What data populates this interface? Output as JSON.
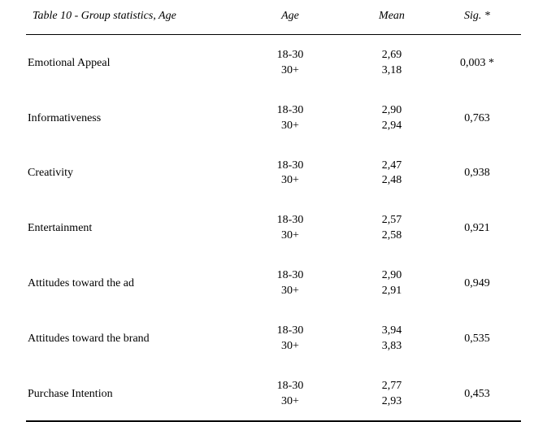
{
  "table": {
    "title": "Table 10 - Group statistics, Age",
    "columns": {
      "age": "Age",
      "mean": "Mean",
      "sig": "Sig. *"
    },
    "rows": [
      {
        "label": "Emotional Appeal",
        "age1": "18-30",
        "age2": "30+",
        "mean1": "2,69",
        "mean2": "3,18",
        "sig": "0,003 *"
      },
      {
        "label": "Informativeness",
        "age1": "18-30",
        "age2": "30+",
        "mean1": "2,90",
        "mean2": "2,94",
        "sig": "0,763"
      },
      {
        "label": "Creativity",
        "age1": "18-30",
        "age2": "30+",
        "mean1": "2,47",
        "mean2": "2,48",
        "sig": "0,938"
      },
      {
        "label": "Entertainment",
        "age1": "18-30",
        "age2": "30+",
        "mean1": "2,57",
        "mean2": "2,58",
        "sig": "0,921"
      },
      {
        "label": "Attitudes toward the ad",
        "age1": "18-30",
        "age2": "30+",
        "mean1": "2,90",
        "mean2": "2,91",
        "sig": "0,949"
      },
      {
        "label": "Attitudes toward the brand",
        "age1": "18-30",
        "age2": "30+",
        "mean1": "3,94",
        "mean2": "3,83",
        "sig": "0,535"
      },
      {
        "label": "Purchase Intention",
        "age1": "18-30",
        "age2": "30+",
        "mean1": "2,77",
        "mean2": "2,93",
        "sig": "0,453"
      }
    ]
  },
  "styling": {
    "font_family": "Times New Roman",
    "header_fontsize": 14,
    "body_fontsize": 14,
    "header_style": "italic",
    "background_color": "#ffffff",
    "text_color": "#000000",
    "header_border_color": "#000000",
    "bottom_border_color": "#000000"
  }
}
